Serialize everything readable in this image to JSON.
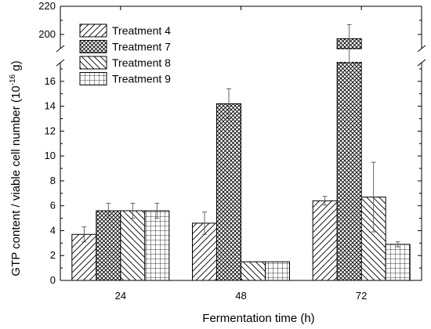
{
  "chart_data": {
    "type": "bar",
    "categories": [
      "24",
      "48",
      "72"
    ],
    "series": [
      {
        "name": "Treatment 4",
        "values": [
          3.7,
          4.6,
          6.4
        ],
        "errors": [
          0.6,
          0.9,
          0.35
        ],
        "pattern": "diag-right"
      },
      {
        "name": "Treatment 7",
        "values": [
          5.6,
          14.2,
          197
        ],
        "errors": [
          0.6,
          1.2,
          10
        ],
        "pattern": "crosshatch"
      },
      {
        "name": "Treatment 8",
        "values": [
          5.6,
          1.5,
          6.7
        ],
        "errors": [
          0.6,
          0,
          2.8
        ],
        "pattern": "diag-left"
      },
      {
        "name": "Treatment 9",
        "values": [
          5.6,
          1.5,
          2.9
        ],
        "errors": [
          0.6,
          0,
          0.2
        ],
        "pattern": "grid"
      }
    ],
    "xlabel": "Fermentation time (h)",
    "ylabel_main": "GTP content / viable cell number (10",
    "ylabel_exp": "-16",
    "ylabel_tail": " g)",
    "y_ticks_lower": [
      "0",
      "2",
      "4",
      "6",
      "8",
      "10",
      "12",
      "14",
      "16"
    ],
    "y_ticks_upper": [
      "200",
      "220"
    ],
    "ylim_lower": [
      0,
      17.5
    ],
    "ylim_upper": [
      190,
      220
    ],
    "axis_break": true,
    "legend_position": "top-left",
    "grid": false
  }
}
